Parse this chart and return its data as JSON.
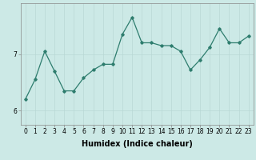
{
  "xlabel": "Humidex (Indice chaleur)",
  "x": [
    0,
    1,
    2,
    3,
    4,
    5,
    6,
    7,
    8,
    9,
    10,
    11,
    12,
    13,
    14,
    15,
    16,
    17,
    18,
    19,
    20,
    21,
    22,
    23
  ],
  "y": [
    6.2,
    6.55,
    7.05,
    6.7,
    6.35,
    6.35,
    6.58,
    6.72,
    6.82,
    6.82,
    7.35,
    7.65,
    7.2,
    7.2,
    7.15,
    7.15,
    7.05,
    6.72,
    6.9,
    7.12,
    7.45,
    7.2,
    7.2,
    7.32
  ],
  "line_color": "#2e7d6e",
  "marker": "D",
  "marker_size": 1.8,
  "line_width": 0.9,
  "bg_color": "#cce9e6",
  "grid_color": "#b8d8d5",
  "ylim": [
    5.75,
    7.9
  ],
  "yticks": [
    6,
    7
  ],
  "axis_fontsize": 6.5,
  "tick_fontsize": 5.5,
  "xlabel_fontsize": 7.0
}
